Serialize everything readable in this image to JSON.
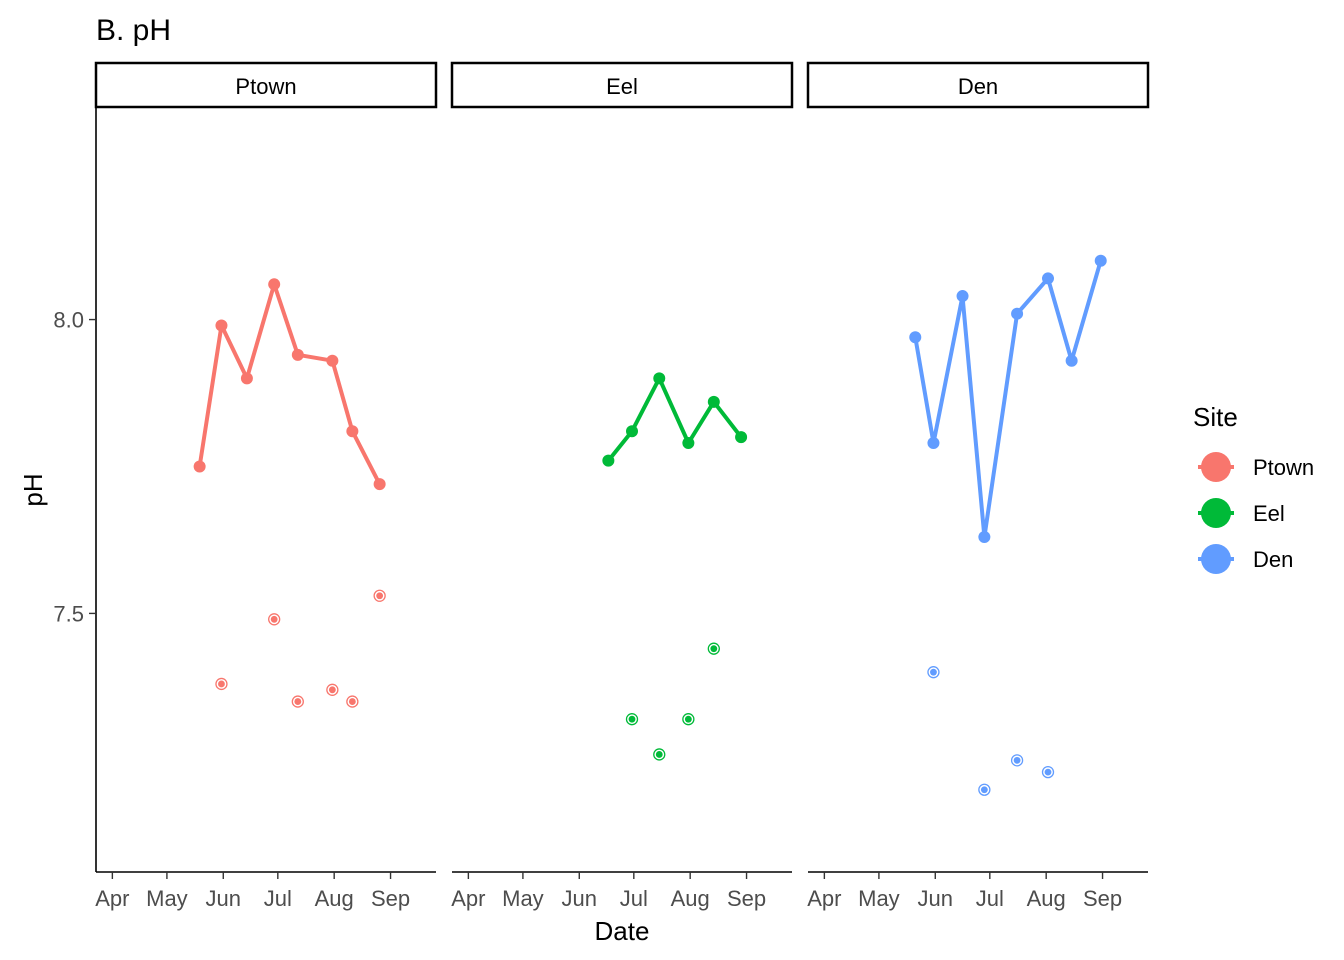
{
  "chart_data": {
    "type": "line",
    "title": "B. pH",
    "xlabel": "Date",
    "ylabel": "pH",
    "x_tick_labels": [
      "Apr",
      "May",
      "Jun",
      "Jul",
      "Aug",
      "Sep"
    ],
    "y_ticks": [
      7.5,
      8.0
    ],
    "y_tick_labels": [
      "7.5",
      "8.0"
    ],
    "ylim": [
      7.06,
      8.36
    ],
    "xlim": [
      "2020-03-23",
      "2020-09-26"
    ],
    "grid": false,
    "legend": {
      "title": "Site",
      "position": "right",
      "entries": [
        "Ptown",
        "Eel",
        "Den"
      ]
    },
    "facets": [
      {
        "name": "Ptown",
        "color": "#F8766D",
        "line": [
          {
            "x": "2020-05-19",
            "y": 7.75
          },
          {
            "x": "2020-05-31",
            "y": 7.99
          },
          {
            "x": "2020-06-14",
            "y": 7.9
          },
          {
            "x": "2020-06-29",
            "y": 8.06
          },
          {
            "x": "2020-07-12",
            "y": 7.94
          },
          {
            "x": "2020-07-31",
            "y": 7.93
          },
          {
            "x": "2020-08-11",
            "y": 7.81
          },
          {
            "x": "2020-08-26",
            "y": 7.72
          }
        ],
        "points": [
          {
            "x": "2020-05-31",
            "y": 7.38
          },
          {
            "x": "2020-06-29",
            "y": 7.49
          },
          {
            "x": "2020-07-12",
            "y": 7.35
          },
          {
            "x": "2020-07-31",
            "y": 7.37
          },
          {
            "x": "2020-08-11",
            "y": 7.35
          },
          {
            "x": "2020-08-26",
            "y": 7.53
          }
        ]
      },
      {
        "name": "Eel",
        "color": "#00BA38",
        "line": [
          {
            "x": "2020-06-17",
            "y": 7.76
          },
          {
            "x": "2020-06-30",
            "y": 7.81
          },
          {
            "x": "2020-07-15",
            "y": 7.9
          },
          {
            "x": "2020-07-31",
            "y": 7.79
          },
          {
            "x": "2020-08-14",
            "y": 7.86
          },
          {
            "x": "2020-08-29",
            "y": 7.8
          }
        ],
        "points": [
          {
            "x": "2020-06-30",
            "y": 7.32
          },
          {
            "x": "2020-07-15",
            "y": 7.26
          },
          {
            "x": "2020-07-31",
            "y": 7.32
          },
          {
            "x": "2020-08-14",
            "y": 7.44
          }
        ]
      },
      {
        "name": "Den",
        "color": "#619CFF",
        "line": [
          {
            "x": "2020-05-21",
            "y": 7.97
          },
          {
            "x": "2020-05-31",
            "y": 7.79
          },
          {
            "x": "2020-06-16",
            "y": 8.04
          },
          {
            "x": "2020-06-28",
            "y": 7.63
          },
          {
            "x": "2020-07-16",
            "y": 8.01
          },
          {
            "x": "2020-08-02",
            "y": 8.07
          },
          {
            "x": "2020-08-15",
            "y": 7.93
          },
          {
            "x": "2020-08-31",
            "y": 8.1
          }
        ],
        "points": [
          {
            "x": "2020-05-31",
            "y": 7.4
          },
          {
            "x": "2020-06-28",
            "y": 7.2
          },
          {
            "x": "2020-07-16",
            "y": 7.25
          },
          {
            "x": "2020-08-02",
            "y": 7.23
          }
        ]
      }
    ]
  }
}
